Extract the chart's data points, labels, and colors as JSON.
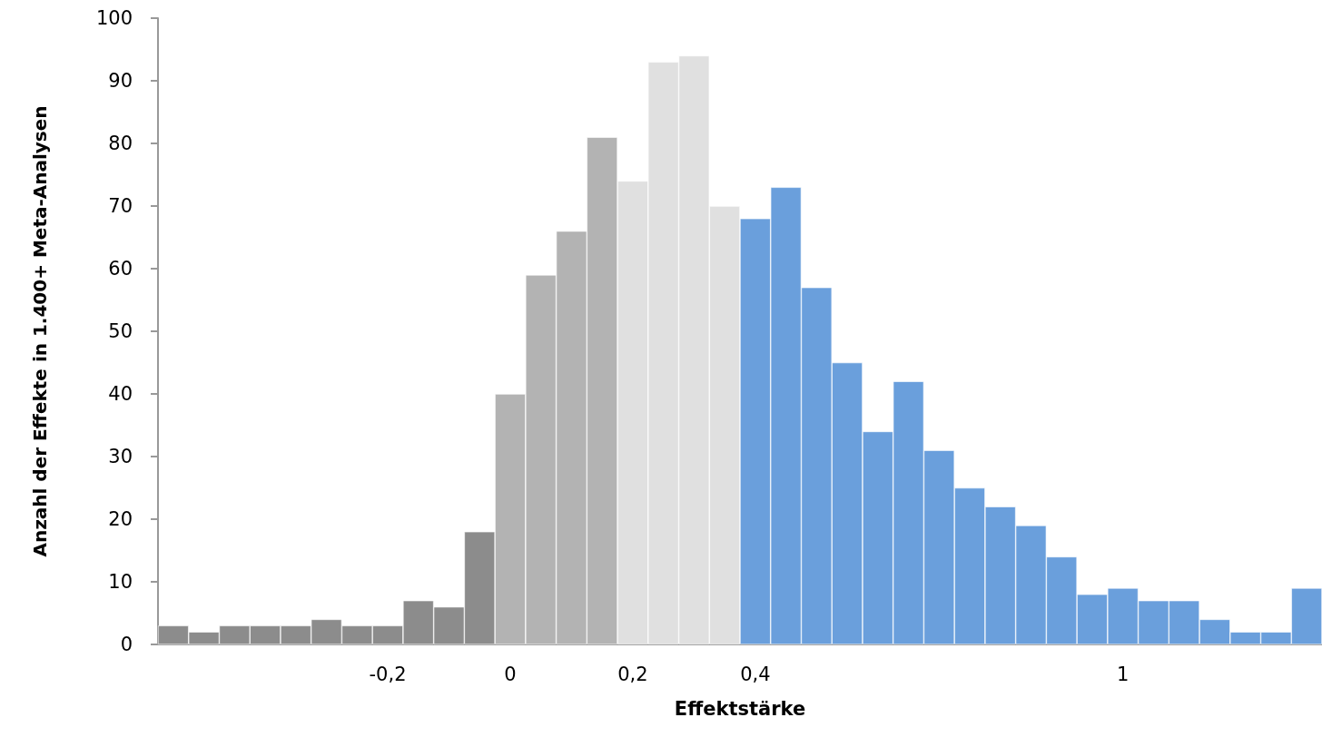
{
  "chart_data": {
    "type": "bar",
    "xlabel": "Effektstärke",
    "ylabel": "Anzahl der Effekte in 1.400+ Meta-Analysen",
    "categories": [
      null,
      null,
      null,
      null,
      null,
      null,
      null,
      "-0,2",
      null,
      null,
      null,
      "0",
      null,
      null,
      null,
      "0,2",
      null,
      null,
      null,
      "0,4",
      null,
      null,
      null,
      null,
      null,
      null,
      null,
      null,
      null,
      null,
      null,
      "1",
      null,
      null,
      null,
      null,
      null,
      null
    ],
    "values": [
      3,
      2,
      3,
      3,
      3,
      4,
      3,
      3,
      7,
      6,
      18,
      40,
      59,
      66,
      81,
      74,
      93,
      94,
      70,
      68,
      73,
      57,
      45,
      34,
      42,
      31,
      25,
      22,
      19,
      14,
      8,
      9,
      7,
      7,
      4,
      2,
      2,
      9
    ],
    "colors": [
      "#8c8c8c",
      "#8c8c8c",
      "#8c8c8c",
      "#8c8c8c",
      "#8c8c8c",
      "#8c8c8c",
      "#8c8c8c",
      "#8c8c8c",
      "#8c8c8c",
      "#8c8c8c",
      "#8c8c8c",
      "#b3b3b3",
      "#b3b3b3",
      "#b3b3b3",
      "#b3b3b3",
      "#e0e0e0",
      "#e0e0e0",
      "#e0e0e0",
      "#e0e0e0",
      "#6a9fdc",
      "#6a9fdc",
      "#6a9fdc",
      "#6a9fdc",
      "#6a9fdc",
      "#6a9fdc",
      "#6a9fdc",
      "#6a9fdc",
      "#6a9fdc",
      "#6a9fdc",
      "#6a9fdc",
      "#6a9fdc",
      "#6a9fdc",
      "#6a9fdc",
      "#6a9fdc",
      "#6a9fdc",
      "#6a9fdc",
      "#6a9fdc",
      "#6a9fdc"
    ],
    "ylim": [
      0,
      100
    ],
    "yticks": [
      0,
      10,
      20,
      30,
      40,
      50,
      60,
      70,
      80,
      90,
      100
    ],
    "grid": false
  }
}
